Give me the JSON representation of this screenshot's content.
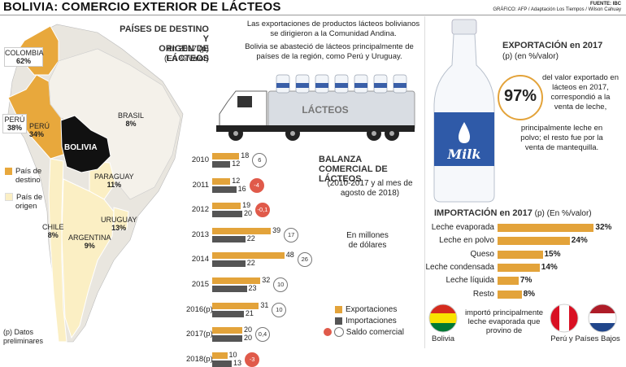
{
  "header": {
    "title": "BOLIVIA: COMERCIO EXTERIOR DE LÁCTEOS",
    "source": "FUENTE: IBC",
    "graphic": "GRÁFICO: AFP / Adaptación Los Tiempos / Wilson Cahuay"
  },
  "map": {
    "title_line1": "PAÍSES DE DESTINO Y",
    "title_line2": "ORIGEN DE LÁCTEOS",
    "subtitle_line1": "en 2017 (p)",
    "subtitle_line2": "(En %/valor)",
    "countries": [
      {
        "name": "COLOMBIA",
        "value": "62%"
      },
      {
        "name": "BRASIL",
        "value": "8%"
      },
      {
        "name": "PERÚ",
        "value": "38%"
      },
      {
        "name": "PERÚ",
        "value": "34%"
      },
      {
        "name": "BOLIVIA",
        "value": ""
      },
      {
        "name": "PARAGUAY",
        "value": "11%"
      },
      {
        "name": "URUGUAY",
        "value": "13%"
      },
      {
        "name": "CHILE",
        "value": "8%"
      },
      {
        "name": "ARGENTINA",
        "value": "9%"
      }
    ],
    "legend_destino_1": "País de",
    "legend_destino_2": "destino",
    "legend_origen_1": "País de",
    "legend_origen_2": "origen",
    "colors": {
      "destino": "#e8a83c",
      "origen": "#fbefc4",
      "bolivia": "#111111",
      "ocean": "#ffffff",
      "other": "#e9e6df"
    }
  },
  "intro": {
    "p1": "Las exportaciones de productos lácteos bolivianos se dirigieron a la Comunidad Andina.",
    "p2": "Bolivia se abasteció de lácteos principalmente de países de la región, como Perú y Uruguay.",
    "truck_label": "LÁCTEOS"
  },
  "chart_data": {
    "type": "bar",
    "title": "BALANZA COMERCIAL DE LÁCTEOS",
    "subtitle": "(2010-2017 y al mes de agosto de 2018)",
    "unit_line1": "En millones",
    "unit_line2": "de dólares",
    "categories": [
      "2010",
      "2011",
      "2012",
      "2013",
      "2014",
      "2015",
      "2016(p)",
      "2017(p)",
      "2018(p)"
    ],
    "series": [
      {
        "name": "Exportaciones",
        "values": [
          18,
          12,
          19,
          39,
          48,
          32,
          31,
          20,
          10
        ]
      },
      {
        "name": "Importaciones",
        "values": [
          12,
          16,
          20,
          22,
          22,
          23,
          21,
          20,
          13
        ]
      },
      {
        "name": "Saldo comercial",
        "values": [
          6,
          -4,
          -0.1,
          17,
          26,
          10,
          10,
          0.4,
          -3
        ]
      }
    ],
    "saldo_labels": [
      "6",
      "-4",
      "-0,1",
      "17",
      "26",
      "10",
      "10",
      "0,4",
      "-3"
    ],
    "colors": {
      "export": "#e3a33a",
      "import": "#555555",
      "saldo_neg": "#e05a4a"
    }
  },
  "footnote": {
    "line1": "(p) Datos",
    "line2": "preliminares"
  },
  "export2017": {
    "title": "EXPORTACIÓN en 2017",
    "subtitle": "(p) (en %/valor)",
    "percent": "97%",
    "desc1_l1": "del valor exportado en",
    "desc1_l2": "lácteos en 2017,",
    "desc1_l3": "correspondió a la",
    "desc1_l4": "venta de leche,",
    "desc2_l1": "principalmente leche en",
    "desc2_l2": "polvo; el resto fue por la",
    "desc2_l3": "venta de mantequilla.",
    "bottle_label": "Milk"
  },
  "import2017": {
    "title": "IMPORTACIÓN en 2017",
    "subtitle": "(p) (En %/valor)",
    "items": [
      {
        "label": "Leche evaporada",
        "value": 32,
        "display": "32%"
      },
      {
        "label": "Leche en polvo",
        "value": 24,
        "display": "24%"
      },
      {
        "label": "Queso",
        "value": 15,
        "display": "15%"
      },
      {
        "label": "Leche condensada",
        "value": 14,
        "display": "14%"
      },
      {
        "label": "Leche líquida",
        "value": 7,
        "display": "7%"
      },
      {
        "label": "Resto",
        "value": 8,
        "display": "8%"
      }
    ],
    "note_l1": "importó principalmente",
    "note_l2": "leche evaporada que",
    "note_l3": "provino de",
    "flag_left": "Bolivia",
    "flag_right": "Perú y Países Bajos"
  }
}
